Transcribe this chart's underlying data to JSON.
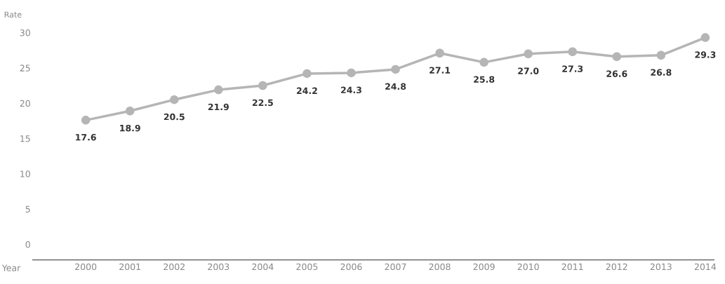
{
  "chart_data": {
    "type": "line",
    "xlabel": "Year",
    "ylabel": "Rate",
    "categories": [
      "2000",
      "2001",
      "2002",
      "2003",
      "2004",
      "2005",
      "2006",
      "2007",
      "2008",
      "2009",
      "2010",
      "2011",
      "2012",
      "2013",
      "2014"
    ],
    "series": [
      {
        "color": "#b5b5b5",
        "values": [
          17.6,
          18.9,
          20.5,
          21.9,
          22.5,
          24.2,
          24.3,
          24.8,
          27.1,
          25.8,
          27.0,
          27.3,
          26.6,
          26.8,
          29.3
        ]
      }
    ],
    "value_labels": [
      "17.6",
      "18.9",
      "20.5",
      "21.9",
      "22.5",
      "24.2",
      "24.3",
      "24.8",
      "27.1",
      "25.8",
      "27.0",
      "27.3",
      "26.6",
      "26.8",
      "29.3"
    ],
    "ylim": [
      -2.2,
      30
    ],
    "yticks": [
      0,
      5,
      10,
      15,
      20,
      25,
      30
    ],
    "marker": "circle",
    "line_style": "solid",
    "grid": false,
    "legend": false
  }
}
